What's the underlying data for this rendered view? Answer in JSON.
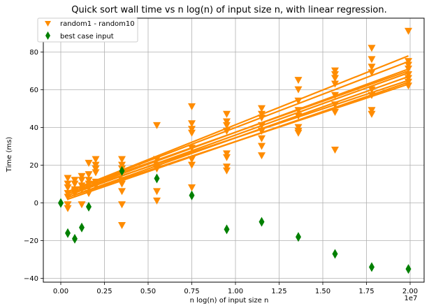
{
  "chart_data": {
    "type": "scatter",
    "title": "Quick sort wall time vs n log(n) of input size n, with linear regression.",
    "xlabel": "n log(n) of input size n",
    "ylabel": "Time (ms)",
    "x_offset_label": "1e7",
    "xlim": [
      -0.1,
      2.08
    ],
    "ylim": [
      -42,
      98
    ],
    "x_units_note": "x values are in units of 1e7",
    "xticks": [
      0.0,
      0.25,
      0.5,
      0.75,
      1.0,
      1.25,
      1.5,
      1.75,
      2.0
    ],
    "xtick_labels": [
      "0.00",
      "0.25",
      "0.50",
      "0.75",
      "1.00",
      "1.25",
      "1.50",
      "1.75",
      "2.00"
    ],
    "yticks": [
      -40,
      -20,
      0,
      20,
      40,
      60,
      80
    ],
    "ytick_labels": [
      "−40",
      "−20",
      "0",
      "20",
      "40",
      "60",
      "80"
    ],
    "grid": true,
    "legend_position": "top-left",
    "legend": [
      {
        "label": "random1 - random10",
        "marker": "triangle-down",
        "color": "#ff8c00"
      },
      {
        "label": "best case input",
        "marker": "thin-diamond",
        "color": "#008000"
      }
    ],
    "series": [
      {
        "name": "random1 - random10",
        "marker": "triangle-down",
        "color": "#ff8c00",
        "points": [
          [
            0.04,
            13
          ],
          [
            0.04,
            10
          ],
          [
            0.04,
            8
          ],
          [
            0.04,
            5
          ],
          [
            0.04,
            3
          ],
          [
            0.04,
            -1
          ],
          [
            0.04,
            -3
          ],
          [
            0.08,
            12
          ],
          [
            0.08,
            10
          ],
          [
            0.08,
            7
          ],
          [
            0.08,
            6
          ],
          [
            0.08,
            5
          ],
          [
            0.12,
            14
          ],
          [
            0.12,
            12
          ],
          [
            0.12,
            9
          ],
          [
            0.12,
            7
          ],
          [
            0.12,
            -1
          ],
          [
            0.16,
            21
          ],
          [
            0.16,
            15
          ],
          [
            0.16,
            12
          ],
          [
            0.16,
            10
          ],
          [
            0.16,
            8
          ],
          [
            0.16,
            5
          ],
          [
            0.2,
            23
          ],
          [
            0.2,
            20
          ],
          [
            0.2,
            18
          ],
          [
            0.2,
            16
          ],
          [
            0.2,
            11
          ],
          [
            0.2,
            9
          ],
          [
            0.35,
            23
          ],
          [
            0.35,
            20
          ],
          [
            0.35,
            18
          ],
          [
            0.35,
            12
          ],
          [
            0.35,
            10
          ],
          [
            0.35,
            6
          ],
          [
            0.35,
            -1
          ],
          [
            0.35,
            -12
          ],
          [
            0.55,
            41
          ],
          [
            0.55,
            23
          ],
          [
            0.55,
            20
          ],
          [
            0.55,
            18
          ],
          [
            0.55,
            6
          ],
          [
            0.55,
            1
          ],
          [
            0.75,
            51
          ],
          [
            0.75,
            42
          ],
          [
            0.75,
            39
          ],
          [
            0.75,
            37
          ],
          [
            0.75,
            29
          ],
          [
            0.75,
            23
          ],
          [
            0.75,
            20
          ],
          [
            0.75,
            8
          ],
          [
            0.95,
            47
          ],
          [
            0.95,
            43
          ],
          [
            0.95,
            41
          ],
          [
            0.95,
            38
          ],
          [
            0.95,
            26
          ],
          [
            0.95,
            24
          ],
          [
            0.95,
            19
          ],
          [
            0.95,
            17
          ],
          [
            1.15,
            50
          ],
          [
            1.15,
            47
          ],
          [
            1.15,
            45
          ],
          [
            1.15,
            41
          ],
          [
            1.15,
            38
          ],
          [
            1.15,
            34
          ],
          [
            1.15,
            30
          ],
          [
            1.15,
            25
          ],
          [
            1.36,
            65
          ],
          [
            1.36,
            60
          ],
          [
            1.36,
            54
          ],
          [
            1.36,
            49
          ],
          [
            1.36,
            46
          ],
          [
            1.36,
            40
          ],
          [
            1.36,
            38
          ],
          [
            1.36,
            37
          ],
          [
            1.57,
            70
          ],
          [
            1.57,
            68
          ],
          [
            1.57,
            66
          ],
          [
            1.57,
            63
          ],
          [
            1.57,
            57
          ],
          [
            1.57,
            52
          ],
          [
            1.57,
            48
          ],
          [
            1.57,
            28
          ],
          [
            1.78,
            82
          ],
          [
            1.78,
            76
          ],
          [
            1.78,
            72
          ],
          [
            1.78,
            69
          ],
          [
            1.78,
            60
          ],
          [
            1.78,
            57
          ],
          [
            1.78,
            49
          ],
          [
            1.78,
            47
          ],
          [
            1.99,
            91
          ],
          [
            1.99,
            75
          ],
          [
            1.99,
            73
          ],
          [
            1.99,
            71
          ],
          [
            1.99,
            68
          ],
          [
            1.99,
            66
          ],
          [
            1.99,
            64
          ],
          [
            1.99,
            62
          ]
        ]
      },
      {
        "name": "best case input",
        "marker": "thin-diamond",
        "color": "#008000",
        "points": [
          [
            0.0,
            0
          ],
          [
            0.04,
            -16
          ],
          [
            0.08,
            -19
          ],
          [
            0.12,
            -13
          ],
          [
            0.16,
            -2
          ],
          [
            0.35,
            17
          ],
          [
            0.55,
            13
          ],
          [
            0.75,
            4
          ],
          [
            0.95,
            -14
          ],
          [
            1.15,
            -10
          ],
          [
            1.36,
            -18
          ],
          [
            1.57,
            -27
          ],
          [
            1.78,
            -34
          ],
          [
            1.99,
            -35
          ]
        ]
      }
    ],
    "regression_lines": [
      {
        "x": [
          0.04,
          1.99
        ],
        "y": [
          6,
          78
        ]
      },
      {
        "x": [
          0.04,
          1.99
        ],
        "y": [
          6,
          75
        ]
      },
      {
        "x": [
          0.04,
          1.99
        ],
        "y": [
          5,
          71
        ]
      },
      {
        "x": [
          0.04,
          1.99
        ],
        "y": [
          6,
          70
        ]
      },
      {
        "x": [
          0.04,
          1.99
        ],
        "y": [
          4,
          69
        ]
      },
      {
        "x": [
          0.04,
          1.99
        ],
        "y": [
          3,
          67
        ]
      },
      {
        "x": [
          0.04,
          1.99
        ],
        "y": [
          5,
          65
        ]
      },
      {
        "x": [
          0.04,
          1.99
        ],
        "y": [
          2,
          64
        ]
      },
      {
        "x": [
          0.04,
          1.99
        ],
        "y": [
          3,
          63
        ]
      }
    ]
  }
}
